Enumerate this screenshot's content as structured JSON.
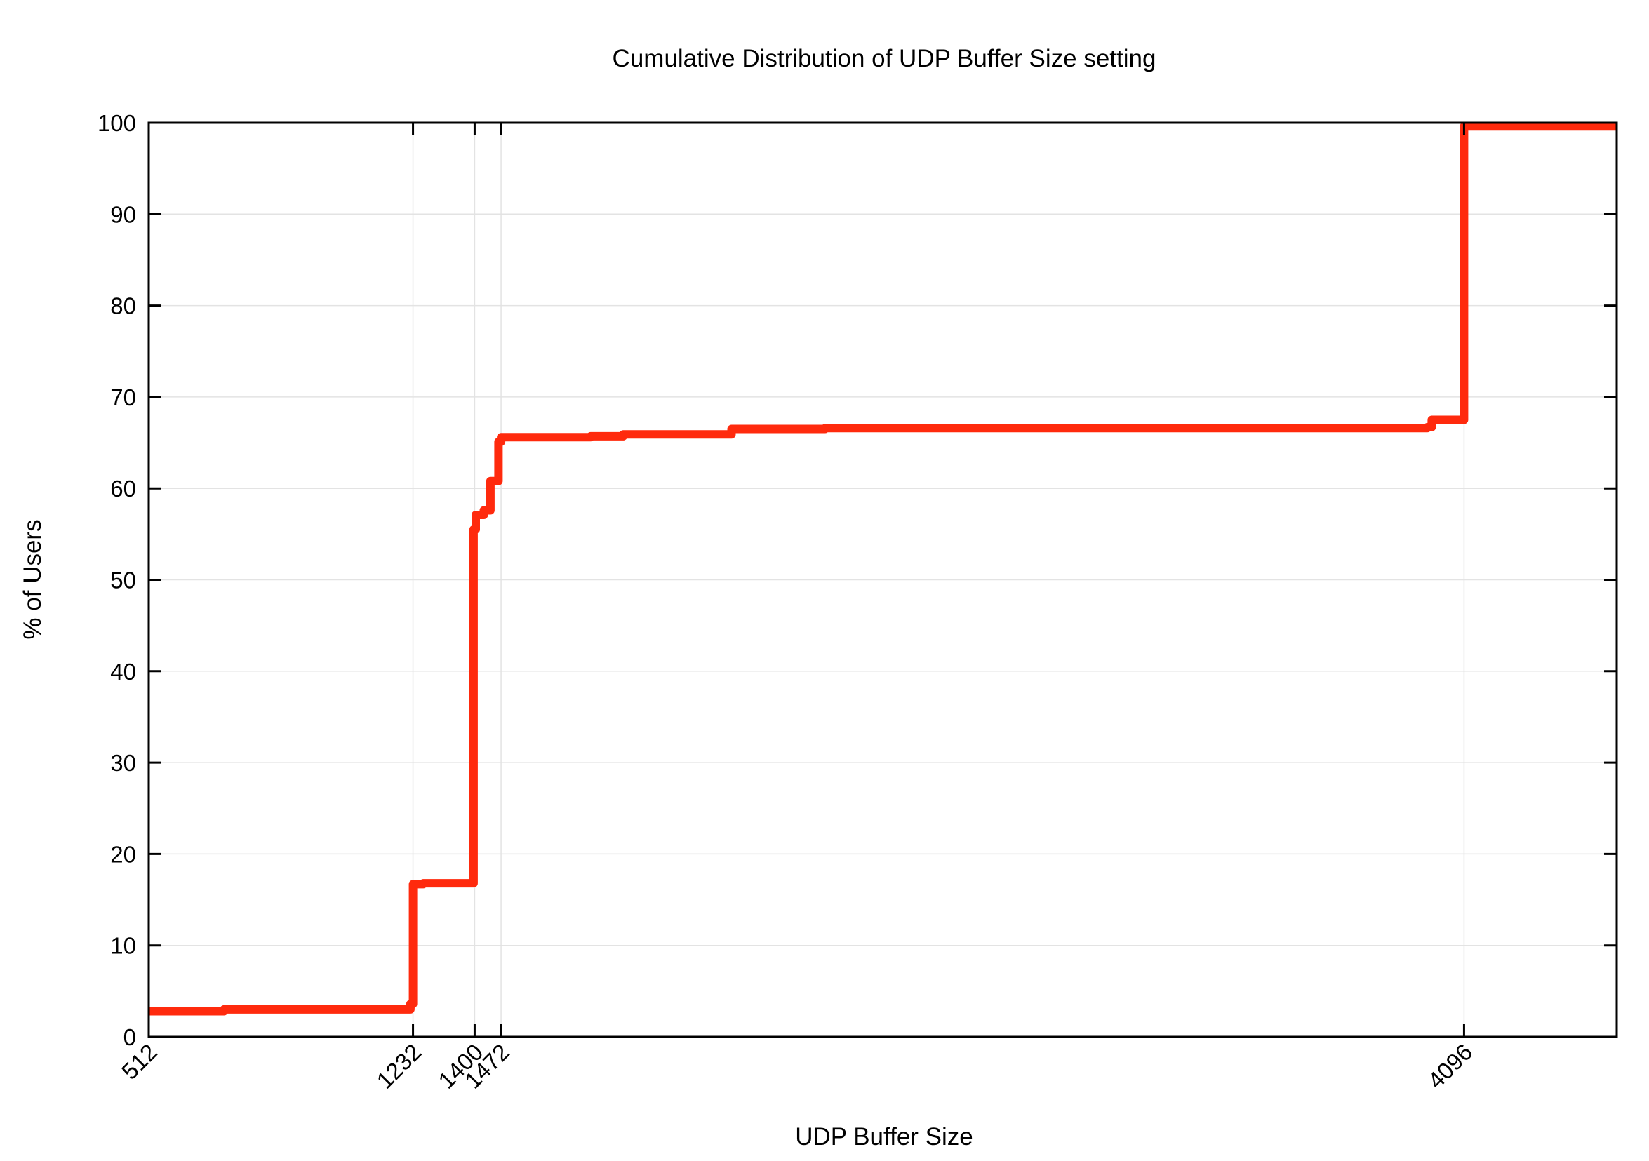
{
  "chart_data": {
    "type": "line",
    "title": "Cumulative Distribution of UDP Buffer Size setting",
    "xlabel": "UDP Buffer Size",
    "ylabel": "% of Users",
    "xlim": [
      512,
      4512
    ],
    "ylim": [
      0,
      100
    ],
    "x_ticks": [
      512,
      1232,
      1400,
      1472,
      4096
    ],
    "y_ticks": [
      0,
      10,
      20,
      30,
      40,
      50,
      60,
      70,
      80,
      90,
      100
    ],
    "grid": true,
    "legend": "none",
    "line_color": "#ff2a0d",
    "step": "post",
    "series": [
      {
        "points": [
          [
            512,
            2.8
          ],
          [
            717,
            3.0
          ],
          [
            1220,
            3.0
          ],
          [
            1225,
            3.6
          ],
          [
            1232,
            3.6
          ],
          [
            1232,
            16.7
          ],
          [
            1260,
            16.8
          ],
          [
            1397,
            16.8
          ],
          [
            1397,
            55.5
          ],
          [
            1403,
            55.5
          ],
          [
            1403,
            57.1
          ],
          [
            1425,
            57.6
          ],
          [
            1443,
            57.6
          ],
          [
            1443,
            60.8
          ],
          [
            1465,
            60.8
          ],
          [
            1465,
            65.1
          ],
          [
            1472,
            65.6
          ],
          [
            1716,
            65.7
          ],
          [
            1805,
            65.9
          ],
          [
            2100,
            66.0
          ],
          [
            2100,
            66.5
          ],
          [
            2355,
            66.6
          ],
          [
            3996,
            66.7
          ],
          [
            4008,
            67.5
          ],
          [
            4096,
            67.5
          ],
          [
            4096,
            99.6
          ],
          [
            4512,
            99.6
          ]
        ]
      }
    ]
  }
}
